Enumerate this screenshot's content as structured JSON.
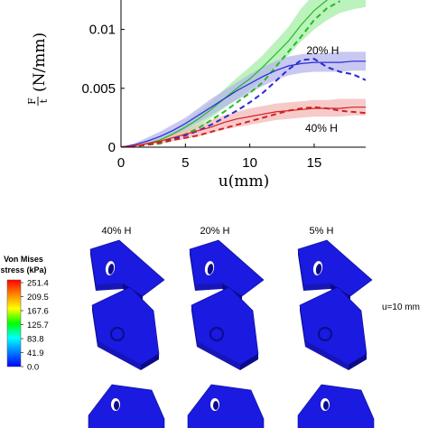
{
  "chart_data": {
    "type": "line",
    "xlabel": "u(mm)",
    "ylabel_num": "F",
    "ylabel_den": "t",
    "ylabel_unit": "(N/mm)",
    "xlim": [
      0,
      19
    ],
    "ylim": [
      0,
      0.0125
    ],
    "xticks": [
      0,
      5,
      10,
      15
    ],
    "yticks": [
      0,
      0.005,
      0.01
    ],
    "ytick_labels": [
      "0",
      "0.005",
      "0.01"
    ],
    "grid": false,
    "annotations": [
      {
        "text": "20% H",
        "x": 14.4,
        "y": 0.0079
      },
      {
        "text": "40% H",
        "x": 14.3,
        "y": 0.0013
      }
    ],
    "series": [
      {
        "group": "5% H",
        "color": "#22bb22",
        "band_color": "#a6eea6",
        "x": [
          0,
          1,
          2,
          3,
          4,
          5,
          6,
          7,
          8,
          9,
          10,
          11,
          12,
          13,
          14,
          15,
          16,
          17,
          18,
          19
        ],
        "mean": [
          0,
          0.0001,
          0.0003,
          0.0006,
          0.0011,
          0.0017,
          0.0024,
          0.0032,
          0.0041,
          0.005,
          0.0058,
          0.0068,
          0.0079,
          0.009,
          0.0104,
          0.0116,
          0.0125,
          0.0131,
          0.0133,
          0.0134
        ],
        "lower": [
          0,
          5e-05,
          0.0002,
          0.0004,
          0.0008,
          0.0012,
          0.0018,
          0.0025,
          0.0033,
          0.0041,
          0.0049,
          0.0058,
          0.0068,
          0.0078,
          0.009,
          0.01,
          0.0108,
          0.0114,
          0.0117,
          0.0119
        ],
        "upper": [
          0,
          0.00015,
          0.0004,
          0.0008,
          0.0014,
          0.0022,
          0.003,
          0.0039,
          0.0049,
          0.0059,
          0.0068,
          0.0078,
          0.009,
          0.0102,
          0.0118,
          0.013,
          0.0138,
          0.0142,
          0.0144,
          0.0145
        ],
        "experiment": [
          0,
          5e-05,
          0.0002,
          0.0003,
          0.0006,
          0.0011,
          0.0016,
          0.0023,
          0.003,
          0.0038,
          0.0046,
          0.0055,
          0.0068,
          0.0081,
          0.0094,
          0.0108,
          0.0118,
          0.0124
        ]
      },
      {
        "group": "20% H",
        "color": "#2a2ad6",
        "band_color": "#b5b5ee",
        "x": [
          0,
          1,
          2,
          3,
          4,
          5,
          6,
          7,
          8,
          9,
          10,
          11,
          12,
          13,
          14,
          15,
          16,
          17,
          18,
          19
        ],
        "mean": [
          0,
          0.0002,
          0.0005,
          0.0009,
          0.0014,
          0.002,
          0.0027,
          0.0034,
          0.0041,
          0.0048,
          0.0054,
          0.006,
          0.0065,
          0.0069,
          0.0071,
          0.0072,
          0.0072,
          0.0072,
          0.0073,
          0.0073
        ],
        "lower": [
          0,
          0.0001,
          0.0003,
          0.0006,
          0.001,
          0.0015,
          0.0021,
          0.0027,
          0.0034,
          0.004,
          0.0046,
          0.0052,
          0.0057,
          0.0061,
          0.0063,
          0.0064,
          0.0064,
          0.0064,
          0.0065,
          0.0065
        ],
        "upper": [
          0,
          0.0003,
          0.0008,
          0.0013,
          0.0019,
          0.0025,
          0.0033,
          0.0041,
          0.0048,
          0.0055,
          0.0062,
          0.0068,
          0.0073,
          0.0077,
          0.0079,
          0.008,
          0.008,
          0.0081,
          0.0081,
          0.0081
        ],
        "experiment": [
          0,
          0.0001,
          0.0002,
          0.0004,
          0.0007,
          0.001,
          0.0014,
          0.0019,
          0.0025,
          0.0031,
          0.0038,
          0.0046,
          0.0056,
          0.0066,
          0.0074,
          0.0075,
          0.0068,
          0.0064,
          0.0062,
          0.0057
        ]
      },
      {
        "group": "40% H",
        "color": "#d42222",
        "band_color": "#f4b8b8",
        "x": [
          0,
          1,
          2,
          3,
          4,
          5,
          6,
          7,
          8,
          9,
          10,
          11,
          12,
          13,
          14,
          15,
          16,
          17,
          18,
          19
        ],
        "mean": [
          0,
          0.0001,
          0.0003,
          0.0005,
          0.0008,
          0.0011,
          0.0014,
          0.0017,
          0.0021,
          0.0024,
          0.0026,
          0.0028,
          0.003,
          0.0031,
          0.0032,
          0.0033,
          0.0033,
          0.0033,
          0.0034,
          0.0034
        ],
        "lower": [
          0,
          5e-05,
          0.0002,
          0.0003,
          0.0005,
          0.0007,
          0.0009,
          0.0012,
          0.0015,
          0.0017,
          0.0019,
          0.0021,
          0.0023,
          0.0024,
          0.0025,
          0.0026,
          0.0026,
          0.0026,
          0.0027,
          0.0027
        ],
        "upper": [
          0,
          0.0002,
          0.0004,
          0.0007,
          0.0011,
          0.0015,
          0.0019,
          0.0023,
          0.0027,
          0.003,
          0.0033,
          0.0035,
          0.0037,
          0.0038,
          0.0039,
          0.004,
          0.004,
          0.0041,
          0.0041,
          0.0041
        ],
        "experiment": [
          0,
          0.0001,
          0.0002,
          0.0004,
          0.0006,
          0.0008,
          0.001,
          0.0013,
          0.0016,
          0.0019,
          0.0022,
          0.0025,
          0.0028,
          0.0031,
          0.0033,
          0.0034,
          0.0033,
          0.0031,
          0.003,
          0.0029
        ]
      }
    ]
  },
  "fem": {
    "column_labels": [
      "40% H",
      "20% H",
      "5% H"
    ],
    "row_labels": [
      "u=10 mm"
    ],
    "colorbar": {
      "title_lines": [
        "Von Mises",
        "stress (kPa)"
      ],
      "ticks": [
        "251.4",
        "209.5",
        "167.6",
        "125.7",
        "83.8",
        "41.9",
        "0.0"
      ],
      "colors": [
        "#ff0000",
        "#ff8800",
        "#ffff00",
        "#00ff00",
        "#00ffff",
        "#0080ff",
        "#0000ff"
      ]
    },
    "shape_color": "#1a1ae0"
  }
}
